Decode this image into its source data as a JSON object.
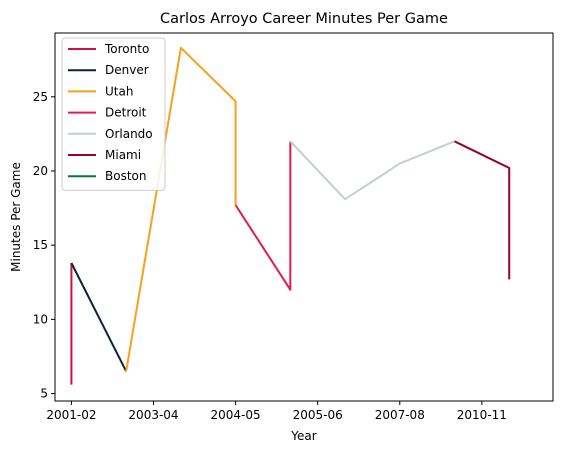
{
  "chart_data": {
    "type": "line",
    "title": "Carlos Arroyo Career Minutes Per Game",
    "xlabel": "Year",
    "ylabel": "Minutes Per Game",
    "x_ticks": [
      "2001-02",
      "2003-04",
      "2004-05",
      "2005-06",
      "2007-08",
      "2010-11"
    ],
    "y_ticks": [
      5,
      10,
      15,
      20,
      25
    ],
    "xlim": [
      -0.3,
      8.8
    ],
    "ylim": [
      4.5,
      29.3
    ],
    "legend_position": "upper-left",
    "series": [
      {
        "name": "Toronto",
        "color": "#ce1141",
        "points": [
          [
            0,
            5.6
          ],
          [
            0,
            13.8
          ]
        ]
      },
      {
        "name": "Denver",
        "color": "#0e2240",
        "points": [
          [
            0,
            13.8
          ],
          [
            1,
            6.5
          ]
        ]
      },
      {
        "name": "Utah",
        "color": "#f9a01b",
        "points": [
          [
            1,
            6.5
          ],
          [
            2,
            28.3
          ],
          [
            3,
            24.7
          ],
          [
            3,
            17.7
          ]
        ]
      },
      {
        "name": "Detroit",
        "color": "#e31c4f",
        "points": [
          [
            3,
            17.7
          ],
          [
            4,
            12.0
          ],
          [
            4,
            22.0
          ]
        ]
      },
      {
        "name": "Orlando",
        "color": "#c4ced4",
        "points": [
          [
            4,
            22.0
          ],
          [
            5,
            18.1
          ],
          [
            6,
            20.5
          ],
          [
            7,
            22.0
          ]
        ]
      },
      {
        "name": "Miami",
        "color": "#98002e",
        "points": [
          [
            7,
            22.0
          ],
          [
            8,
            20.2
          ],
          [
            8,
            12.7
          ]
        ]
      },
      {
        "name": "Boston",
        "color": "#007a33",
        "points": []
      }
    ]
  }
}
